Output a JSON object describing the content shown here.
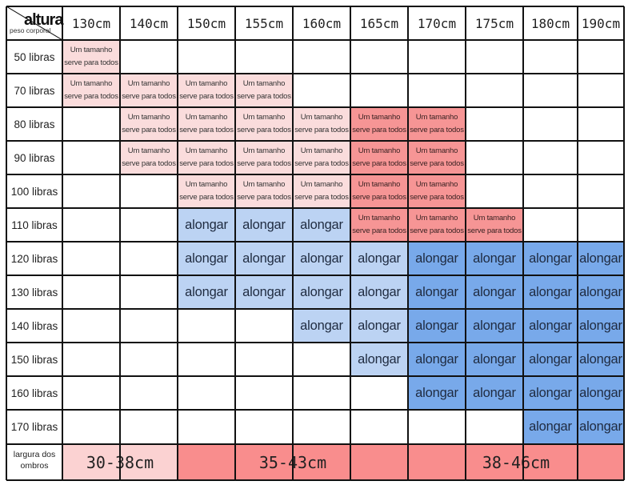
{
  "corner": {
    "top_label": "altura",
    "bottom_label": "peso corporal"
  },
  "heights": [
    "130cm",
    "140cm",
    "150cm",
    "155cm",
    "160cm",
    "165cm",
    "170cm",
    "175cm",
    "180cm",
    "190cm"
  ],
  "weights": [
    "50 libras",
    "70 libras",
    "80 libras",
    "90 libras",
    "100 libras",
    "110 libras",
    "120 libras",
    "130 libras",
    "140 libras",
    "150 libras",
    "160 libras",
    "170 libras"
  ],
  "labels": {
    "one_size": "Um tamanho serve para todos",
    "lengthen": "alongar"
  },
  "legend_colors": {
    "one_size": "#fadcdc",
    "one_size_dark": "#f69595",
    "lengthen": "#bcd3f3",
    "lengthen_dark": "#78a9ea",
    "shoulder_light": "#fbd2d2",
    "shoulder_dark": "#f98d8d"
  },
  "grid": [
    [
      "one_size",
      "",
      "",
      "",
      "",
      "",
      "",
      "",
      "",
      ""
    ],
    [
      "one_size",
      "one_size",
      "one_size",
      "one_size",
      "",
      "",
      "",
      "",
      "",
      ""
    ],
    [
      "",
      "one_size",
      "one_size",
      "one_size",
      "one_size",
      "one_size_dark",
      "one_size_dark",
      "",
      "",
      ""
    ],
    [
      "",
      "one_size",
      "one_size",
      "one_size",
      "one_size",
      "one_size_dark",
      "one_size_dark",
      "",
      "",
      ""
    ],
    [
      "",
      "",
      "one_size",
      "one_size",
      "one_size",
      "one_size_dark",
      "one_size_dark",
      "",
      "",
      ""
    ],
    [
      "",
      "",
      "lengthen",
      "lengthen",
      "lengthen",
      "one_size_dark",
      "one_size_dark",
      "one_size_dark",
      "",
      ""
    ],
    [
      "",
      "",
      "lengthen",
      "lengthen",
      "lengthen",
      "lengthen",
      "lengthen_dark",
      "lengthen_dark",
      "lengthen_dark",
      "lengthen_dark"
    ],
    [
      "",
      "",
      "lengthen",
      "lengthen",
      "lengthen",
      "lengthen",
      "lengthen_dark",
      "lengthen_dark",
      "lengthen_dark",
      "lengthen_dark"
    ],
    [
      "",
      "",
      "",
      "",
      "lengthen",
      "lengthen",
      "lengthen_dark",
      "lengthen_dark",
      "lengthen_dark",
      "lengthen_dark"
    ],
    [
      "",
      "",
      "",
      "",
      "",
      "lengthen",
      "lengthen_dark",
      "lengthen_dark",
      "lengthen_dark",
      "lengthen_dark"
    ],
    [
      "",
      "",
      "",
      "",
      "",
      "",
      "lengthen_dark",
      "lengthen_dark",
      "lengthen_dark",
      "lengthen_dark"
    ],
    [
      "",
      "",
      "",
      "",
      "",
      "",
      "",
      "",
      "lengthen_dark",
      "lengthen_dark"
    ]
  ],
  "shoulder": {
    "label": "largura dos ombros",
    "ranges": [
      {
        "text": "30-38cm",
        "from_col": 0,
        "to_col": 1,
        "tone": "shoulder_light"
      },
      {
        "text": "35-43cm",
        "from_col": 2,
        "to_col": 5,
        "tone": "shoulder_dark"
      },
      {
        "text": "38-46cm",
        "from_col": 6,
        "to_col": 9,
        "tone": "shoulder_dark"
      }
    ]
  }
}
